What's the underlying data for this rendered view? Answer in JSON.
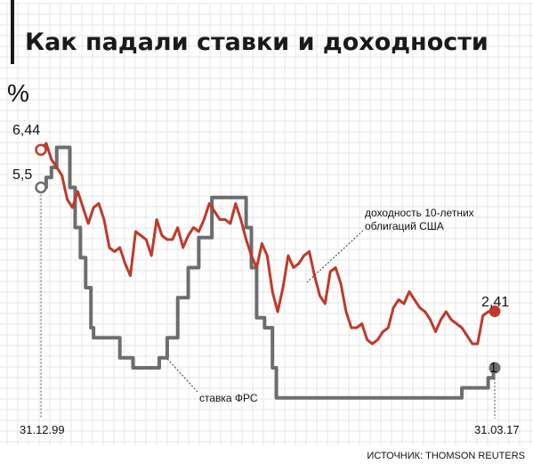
{
  "chart_data": {
    "type": "line",
    "title": "Как падали ставки и доходности",
    "ylabel": "%",
    "x_start": "31.12.99",
    "x_end": "31.03.17",
    "ylim": [
      0,
      7
    ],
    "grid": true,
    "source": "ИСТОЧНИК: THOMSON REUTERS",
    "series": [
      {
        "name": "доходность 10-летних облигаций США",
        "color": "#c0392b",
        "start_label": "6,44",
        "end_label": "2,41",
        "x": [
          2000.0,
          2000.2,
          2000.4,
          2000.6,
          2000.8,
          2001.0,
          2001.2,
          2001.4,
          2001.6,
          2001.8,
          2002.0,
          2002.2,
          2002.4,
          2002.6,
          2002.8,
          2003.0,
          2003.2,
          2003.4,
          2003.6,
          2003.8,
          2004.0,
          2004.2,
          2004.4,
          2004.6,
          2004.8,
          2005.0,
          2005.2,
          2005.4,
          2005.6,
          2005.8,
          2006.0,
          2006.2,
          2006.4,
          2006.6,
          2006.8,
          2007.0,
          2007.2,
          2007.4,
          2007.6,
          2007.8,
          2008.0,
          2008.2,
          2008.4,
          2008.6,
          2008.8,
          2009.0,
          2009.2,
          2009.4,
          2009.6,
          2009.8,
          2010.0,
          2010.2,
          2010.4,
          2010.6,
          2010.8,
          2011.0,
          2011.2,
          2011.4,
          2011.6,
          2011.8,
          2012.0,
          2012.2,
          2012.4,
          2012.6,
          2012.8,
          2013.0,
          2013.2,
          2013.4,
          2013.6,
          2013.8,
          2014.0,
          2014.2,
          2014.4,
          2014.6,
          2014.8,
          2015.0,
          2015.2,
          2015.4,
          2015.6,
          2015.8,
          2016.0,
          2016.2,
          2016.4,
          2016.6,
          2016.8,
          2017.0,
          2017.25
        ],
        "values": [
          6.44,
          6.6,
          6.2,
          6.0,
          5.8,
          5.2,
          5.0,
          5.4,
          5.0,
          4.6,
          5.0,
          5.1,
          4.7,
          4.0,
          3.9,
          4.0,
          3.6,
          3.3,
          4.4,
          4.3,
          4.2,
          3.8,
          4.7,
          4.3,
          4.2,
          4.2,
          4.5,
          4.0,
          4.3,
          4.5,
          4.4,
          4.7,
          5.1,
          4.9,
          4.7,
          4.7,
          4.6,
          5.1,
          4.7,
          4.2,
          3.8,
          3.5,
          4.1,
          3.8,
          2.9,
          2.4,
          3.0,
          3.8,
          3.5,
          3.6,
          3.8,
          3.9,
          3.3,
          2.8,
          2.6,
          3.4,
          3.5,
          3.1,
          2.4,
          2.0,
          2.0,
          2.1,
          1.7,
          1.6,
          1.7,
          1.9,
          2.0,
          2.5,
          2.7,
          2.6,
          2.9,
          2.7,
          2.5,
          2.4,
          2.2,
          1.9,
          2.2,
          2.4,
          2.2,
          2.1,
          2.0,
          1.8,
          1.6,
          1.6,
          2.3,
          2.4,
          2.41
        ]
      },
      {
        "name": "ставка ФРС",
        "color": "#6d6d6d",
        "start_label": "5,5",
        "end_label": "1",
        "x": [
          2000.0,
          2000.2,
          2000.4,
          2000.6,
          2001.0,
          2001.1,
          2001.3,
          2001.5,
          2001.7,
          2001.9,
          2002.0,
          2002.9,
          2003.0,
          2003.5,
          2004.0,
          2004.5,
          2004.8,
          2005.2,
          2005.6,
          2006.0,
          2006.5,
          2007.0,
          2007.5,
          2007.8,
          2008.0,
          2008.2,
          2008.5,
          2008.8,
          2008.95,
          2015.9,
          2016.0,
          2016.9,
          2017.0,
          2017.2,
          2017.25
        ],
        "values": [
          5.5,
          5.75,
          6.0,
          6.5,
          6.5,
          5.5,
          4.5,
          3.75,
          3.0,
          2.0,
          1.75,
          1.75,
          1.25,
          1.0,
          1.0,
          1.25,
          1.75,
          2.75,
          3.5,
          4.25,
          5.25,
          5.25,
          5.25,
          4.5,
          3.5,
          2.25,
          2.0,
          1.0,
          0.25,
          0.25,
          0.5,
          0.5,
          0.75,
          0.9,
          1.0
        ]
      }
    ],
    "annotations": [
      {
        "text_lines": [
          "доходность 10-летних",
          "облигаций США"
        ],
        "series": 0
      },
      {
        "text_lines": [
          "ставка ФРС"
        ],
        "series": 1
      }
    ]
  }
}
